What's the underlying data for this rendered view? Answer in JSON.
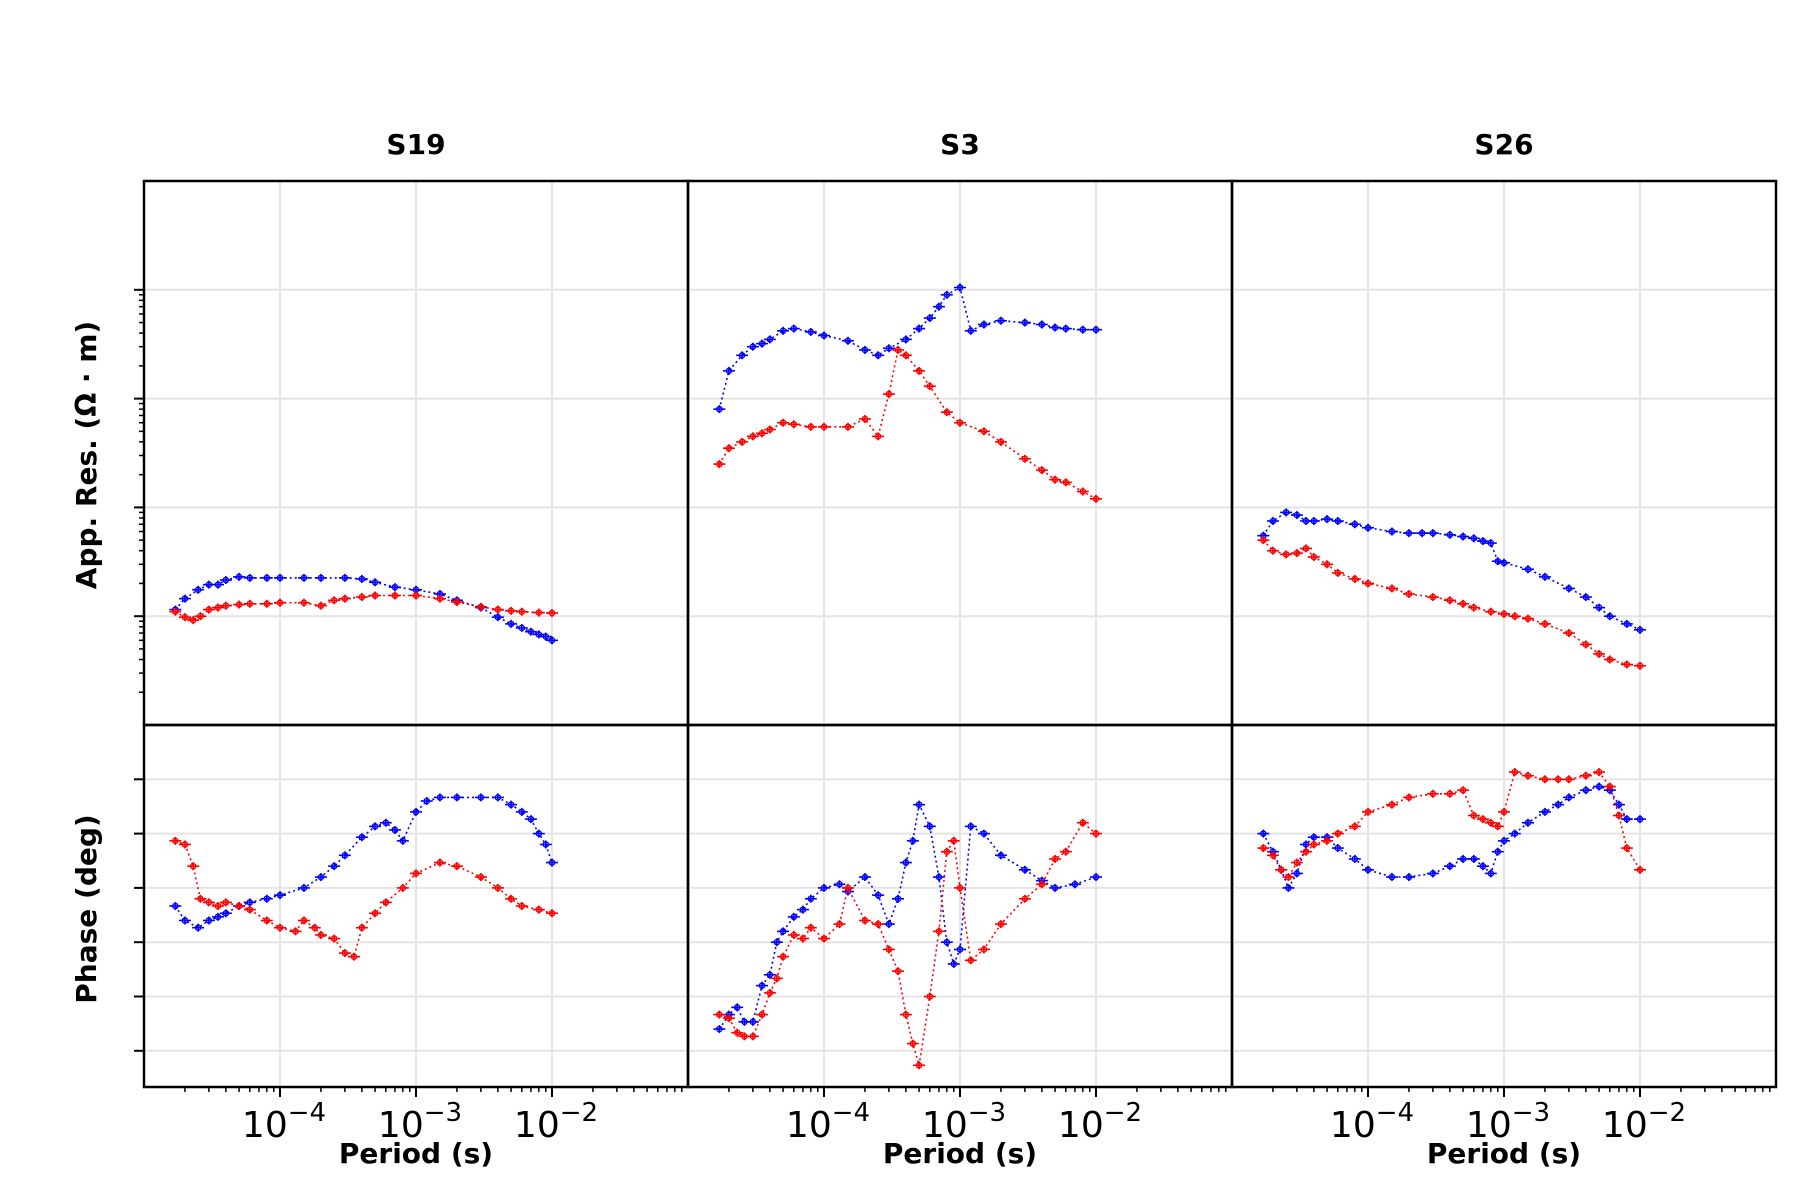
{
  "chart_data": {
    "type": "scatter",
    "x_scale": "log",
    "x_ticks": [
      {
        "value": 0.0001,
        "base": "10",
        "exp": "−4"
      },
      {
        "value": 0.001,
        "base": "10",
        "exp": "−3"
      },
      {
        "value": 0.01,
        "base": "10",
        "exp": "−2"
      }
    ],
    "xlabel": "Period (s)",
    "ylabel_top": "App. Res. (Ω · m)",
    "ylabel_bottom": "Phase (deg)",
    "grid": true,
    "colors": {
      "series_a": "#0000ff",
      "series_b": "#ff0000"
    },
    "panels": [
      {
        "title": "S19",
        "res": [
          {
            "x": [
              1.7e-05,
              2e-05,
              2.5e-05,
              3e-05,
              3.5e-05,
              4e-05,
              5e-05,
              6e-05,
              8e-05,
              0.0001,
              0.00015,
              0.0002,
              0.0003,
              0.0004,
              0.0005,
              0.0007,
              0.001,
              0.0015,
              0.002,
              0.003,
              0.004,
              0.005,
              0.006,
              0.007,
              0.008,
              0.009,
              0.01
            ],
            "y": [
              1.15,
              1.45,
              1.75,
              1.95,
              1.95,
              2.15,
              2.3,
              2.25,
              2.25,
              2.25,
              2.25,
              2.25,
              2.25,
              2.2,
              2.05,
              1.85,
              1.75,
              1.6,
              1.4,
              1.2,
              0.98,
              0.85,
              0.78,
              0.72,
              0.68,
              0.65,
              0.6
            ]
          },
          {
            "x": [
              1.7e-05,
              2e-05,
              2.3e-05,
              2.6e-05,
              3e-05,
              3.5e-05,
              4e-05,
              5e-05,
              6e-05,
              8e-05,
              0.0001,
              0.00015,
              0.0002,
              0.00025,
              0.0003,
              0.0004,
              0.0005,
              0.0007,
              0.001,
              0.0015,
              0.002,
              0.003,
              0.004,
              0.005,
              0.006,
              0.008,
              0.01
            ],
            "y": [
              1.1,
              0.98,
              0.92,
              1.0,
              1.15,
              1.2,
              1.25,
              1.28,
              1.3,
              1.3,
              1.33,
              1.33,
              1.25,
              1.4,
              1.45,
              1.5,
              1.55,
              1.55,
              1.55,
              1.45,
              1.35,
              1.22,
              1.15,
              1.12,
              1.1,
              1.08,
              1.07
            ]
          }
        ],
        "phase": [
          {
            "x": [
              1.7e-05,
              2e-05,
              2.5e-05,
              3e-05,
              3.5e-05,
              4e-05,
              5e-05,
              6e-05,
              8e-05,
              0.0001,
              0.00015,
              0.0002,
              0.00025,
              0.0003,
              0.0004,
              0.0005,
              0.0006,
              0.0007,
              0.0008,
              0.001,
              0.0012,
              0.0015,
              0.002,
              0.003,
              0.004,
              0.005,
              0.006,
              0.007,
              0.008,
              0.009,
              0.01
            ],
            "y": [
              40,
              36,
              34,
              36,
              37,
              38,
              40,
              41,
              42,
              43,
              45,
              48,
              51,
              54,
              59,
              62,
              63,
              61,
              58,
              66,
              69,
              70,
              70,
              70,
              70,
              68,
              66,
              64,
              60,
              57,
              52
            ]
          },
          {
            "x": [
              1.7e-05,
              2e-05,
              2.3e-05,
              2.6e-05,
              3e-05,
              3.5e-05,
              4e-05,
              5e-05,
              6e-05,
              8e-05,
              0.0001,
              0.00013,
              0.00015,
              0.00018,
              0.0002,
              0.00025,
              0.0003,
              0.00035,
              0.0004,
              0.0005,
              0.0006,
              0.0008,
              0.001,
              0.0015,
              0.002,
              0.003,
              0.004,
              0.005,
              0.006,
              0.008,
              0.01
            ],
            "y": [
              58,
              57,
              51,
              42,
              41,
              40,
              41,
              40,
              39,
              36,
              34,
              33,
              36,
              34,
              32,
              31,
              27,
              26,
              34,
              38,
              41,
              45,
              49,
              52,
              51,
              48,
              45,
              42,
              40,
              39,
              38
            ]
          }
        ]
      },
      {
        "title": "S3",
        "res": [
          {
            "x": [
              1.7e-05,
              2e-05,
              2.5e-05,
              3e-05,
              3.5e-05,
              4e-05,
              5e-05,
              6e-05,
              8e-05,
              0.0001,
              0.00015,
              0.0002,
              0.00025,
              0.0003,
              0.0004,
              0.0005,
              0.0006,
              0.0007,
              0.0008,
              0.001,
              0.0012,
              0.0015,
              0.002,
              0.003,
              0.004,
              0.005,
              0.006,
              0.008,
              0.01
            ],
            "y": [
              80,
              180,
              250,
              300,
              320,
              350,
              420,
              440,
              410,
              380,
              340,
              280,
              250,
              290,
              350,
              440,
              550,
              700,
              900,
              1050,
              420,
              480,
              520,
              500,
              480,
              450,
              440,
              430,
              430
            ]
          },
          {
            "x": [
              1.7e-05,
              2e-05,
              2.5e-05,
              3e-05,
              3.5e-05,
              4e-05,
              5e-05,
              6e-05,
              8e-05,
              0.0001,
              0.00015,
              0.0002,
              0.00025,
              0.0003,
              0.00035,
              0.0004,
              0.0005,
              0.0006,
              0.0008,
              0.001,
              0.0015,
              0.002,
              0.003,
              0.004,
              0.005,
              0.006,
              0.008,
              0.01
            ],
            "y": [
              25,
              35,
              40,
              45,
              48,
              52,
              60,
              58,
              55,
              55,
              55,
              65,
              45,
              110,
              280,
              250,
              180,
              130,
              75,
              60,
              50,
              40,
              28,
              22,
              18,
              17,
              14,
              12
            ]
          }
        ],
        "phase": [
          {
            "x": [
              1.7e-05,
              2e-05,
              2.3e-05,
              2.6e-05,
              3e-05,
              3.5e-05,
              4e-05,
              4.5e-05,
              5e-05,
              6e-05,
              7e-05,
              8e-05,
              0.0001,
              0.00013,
              0.00015,
              0.0002,
              0.00025,
              0.0003,
              0.00035,
              0.0004,
              0.00045,
              0.0005,
              0.0006,
              0.0007,
              0.0008,
              0.0009,
              0.001,
              0.0012,
              0.0015,
              0.002,
              0.003,
              0.004,
              0.005,
              0.007,
              0.01
            ],
            "y": [
              6,
              10,
              12,
              8,
              8,
              18,
              21,
              30,
              33,
              37,
              39,
              42,
              45,
              46,
              44,
              48,
              43,
              35,
              42,
              52,
              58,
              68,
              62,
              48,
              30,
              24,
              28,
              62,
              60,
              54,
              50,
              47,
              45,
              46,
              48
            ]
          },
          {
            "x": [
              1.7e-05,
              2e-05,
              2.3e-05,
              2.6e-05,
              3e-05,
              3.5e-05,
              4e-05,
              4.5e-05,
              5e-05,
              6e-05,
              7e-05,
              8e-05,
              0.0001,
              0.00013,
              0.00015,
              0.0002,
              0.00025,
              0.0003,
              0.00035,
              0.0004,
              0.00045,
              0.0005,
              0.0006,
              0.0007,
              0.0008,
              0.0009,
              0.001,
              0.0012,
              0.0015,
              0.002,
              0.003,
              0.004,
              0.005,
              0.006,
              0.008,
              0.01
            ],
            "y": [
              10,
              9,
              5,
              4,
              4,
              10,
              16,
              20,
              26,
              32,
              31,
              34,
              31,
              35,
              45,
              36,
              35,
              28,
              22,
              10,
              2,
              -4,
              15,
              33,
              55,
              58,
              45,
              25,
              28,
              35,
              42,
              46,
              53,
              55,
              63,
              60
            ]
          }
        ]
      },
      {
        "title": "S26",
        "res": [
          {
            "x": [
              1.7e-05,
              2e-05,
              2.5e-05,
              3e-05,
              3.5e-05,
              4e-05,
              5e-05,
              6e-05,
              8e-05,
              0.0001,
              0.00015,
              0.0002,
              0.00025,
              0.0003,
              0.0004,
              0.0005,
              0.0006,
              0.0007,
              0.0008,
              0.0009,
              0.001,
              0.0015,
              0.002,
              0.003,
              0.004,
              0.005,
              0.006,
              0.008,
              0.01
            ],
            "y": [
              5.5,
              7.5,
              9,
              8.5,
              7.5,
              7.5,
              7.8,
              7.5,
              7,
              6.5,
              6,
              5.8,
              5.8,
              5.8,
              5.6,
              5.4,
              5.2,
              4.9,
              4.7,
              3.2,
              3.1,
              2.7,
              2.3,
              1.8,
              1.5,
              1.2,
              1.0,
              0.85,
              0.75
            ]
          },
          {
            "x": [
              1.7e-05,
              2e-05,
              2.5e-05,
              3e-05,
              3.5e-05,
              4e-05,
              5e-05,
              6e-05,
              8e-05,
              0.0001,
              0.00015,
              0.0002,
              0.0003,
              0.0004,
              0.0005,
              0.0006,
              0.0008,
              0.001,
              0.0012,
              0.0015,
              0.002,
              0.003,
              0.004,
              0.005,
              0.006,
              0.008,
              0.01
            ],
            "y": [
              5,
              4,
              3.7,
              3.8,
              4.2,
              3.5,
              3,
              2.5,
              2.2,
              2,
              1.8,
              1.6,
              1.5,
              1.4,
              1.3,
              1.2,
              1.1,
              1.05,
              1.0,
              0.95,
              0.85,
              0.7,
              0.55,
              0.45,
              0.4,
              0.36,
              0.35
            ]
          }
        ],
        "phase": [
          {
            "x": [
              1.7e-05,
              2e-05,
              2.3e-05,
              2.6e-05,
              3e-05,
              3.5e-05,
              4e-05,
              5e-05,
              6e-05,
              8e-05,
              0.0001,
              0.00015,
              0.0002,
              0.0003,
              0.0004,
              0.0005,
              0.0006,
              0.0007,
              0.0008,
              0.0009,
              0.001,
              0.0012,
              0.0015,
              0.002,
              0.0025,
              0.003,
              0.004,
              0.005,
              0.006,
              0.007,
              0.008,
              0.01
            ],
            "y": [
              60,
              55,
              50,
              45,
              49,
              57,
              59,
              59,
              56,
              53,
              50,
              48,
              48,
              49,
              51,
              53,
              53,
              51,
              49,
              55,
              58,
              60,
              63,
              66,
              68,
              70,
              72,
              73,
              72,
              68,
              64,
              64
            ]
          },
          {
            "x": [
              1.7e-05,
              2e-05,
              2.3e-05,
              2.6e-05,
              3e-05,
              3.5e-05,
              4e-05,
              5e-05,
              6e-05,
              8e-05,
              0.0001,
              0.00015,
              0.0002,
              0.0003,
              0.0004,
              0.0005,
              0.0006,
              0.0007,
              0.0008,
              0.0009,
              0.001,
              0.0012,
              0.0015,
              0.002,
              0.0025,
              0.003,
              0.004,
              0.005,
              0.006,
              0.007,
              0.008,
              0.01
            ],
            "y": [
              56,
              54,
              50,
              48,
              52,
              55,
              57,
              58,
              60,
              62,
              66,
              68,
              70,
              71,
              71,
              72,
              65,
              64,
              63,
              62,
              66,
              77,
              76,
              75,
              75,
              75,
              76,
              77,
              73,
              65,
              56,
              50
            ]
          }
        ]
      }
    ]
  }
}
